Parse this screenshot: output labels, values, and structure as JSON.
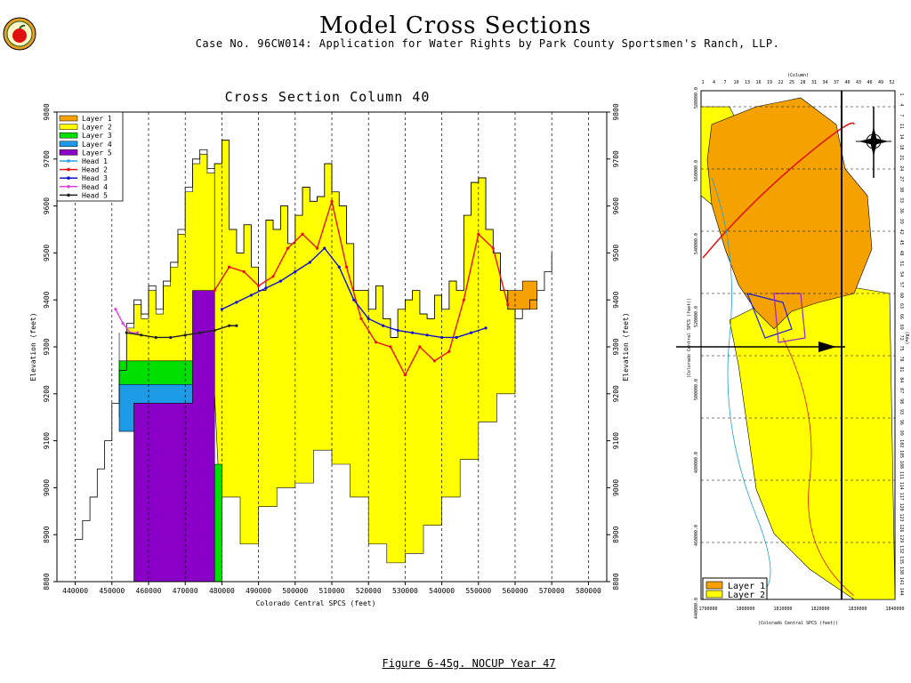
{
  "header": {
    "title": "Model Cross Sections",
    "subtitle": "Case No. 96CW014: Application for Water Rights by Park County Sportsmen's Ranch, LLP."
  },
  "caption": "Figure 6-45g.  NOCUP Year 47",
  "chart_data": {
    "type": "area",
    "title": "Cross Section Column 40",
    "xlabel": "Colorado Central SPCS (feet)",
    "ylabel": "Elevation (feet)",
    "ylabel_right": "Elevation (feet)",
    "xlim": [
      435000,
      585000
    ],
    "ylim": [
      8800,
      9800
    ],
    "xticks": [
      440000,
      450000,
      460000,
      470000,
      480000,
      490000,
      500000,
      510000,
      520000,
      530000,
      540000,
      550000,
      560000,
      570000,
      580000
    ],
    "yticks": [
      8800,
      8900,
      9000,
      9100,
      9200,
      9300,
      9400,
      9500,
      9600,
      9700,
      9800
    ],
    "grid": "vertical dashed",
    "legend_position": "top-left",
    "legend": [
      {
        "name": "Layer 1",
        "color": "#f5a100"
      },
      {
        "name": "Layer 2",
        "color": "#ffff00"
      },
      {
        "name": "Layer 3",
        "color": "#00e000"
      },
      {
        "name": "Layer 4",
        "color": "#1e9be6"
      },
      {
        "name": "Layer 5",
        "color": "#8a00c8"
      },
      {
        "name": "Head 1",
        "color": "#2aa0e8"
      },
      {
        "name": "Head 2",
        "color": "#e81010"
      },
      {
        "name": "Head 3",
        "color": "#1010d0"
      },
      {
        "name": "Head 4",
        "color": "#e040e0"
      },
      {
        "name": "Head 5",
        "color": "#202020"
      }
    ],
    "ground_surface": {
      "x": [
        440000,
        442000,
        444000,
        446000,
        448000,
        450000,
        452000,
        454000,
        456000,
        458000,
        460000,
        462000,
        464000,
        466000,
        468000,
        470000,
        472000,
        474000,
        476000,
        478000,
        480000,
        482000,
        484000,
        486000,
        488000,
        490000,
        492000,
        494000,
        496000,
        498000,
        500000,
        502000,
        504000,
        506000,
        508000,
        510000,
        512000,
        514000,
        516000,
        518000,
        520000,
        522000,
        524000,
        526000,
        528000,
        530000,
        532000,
        534000,
        536000,
        538000,
        540000,
        542000,
        544000,
        546000,
        548000,
        550000,
        552000,
        554000,
        556000,
        558000,
        560000,
        562000,
        564000,
        566000,
        568000,
        570000
      ],
      "y": [
        8890,
        8930,
        8980,
        9040,
        9100,
        9180,
        9250,
        9350,
        9400,
        9370,
        9430,
        9380,
        9440,
        9480,
        9550,
        9640,
        9700,
        9720,
        9680,
        9690,
        9740,
        9550,
        9500,
        9560,
        9470,
        9420,
        9570,
        9550,
        9600,
        9520,
        9580,
        9640,
        9610,
        9620,
        9690,
        9630,
        9600,
        9520,
        9420,
        9420,
        9380,
        9430,
        9360,
        9320,
        9380,
        9400,
        9420,
        9370,
        9360,
        9410,
        9380,
        9440,
        9420,
        9580,
        9650,
        9660,
        9550,
        9500,
        9420,
        9380,
        9360,
        9380,
        9400,
        9420,
        9460,
        9500
      ]
    },
    "layer_bottoms": {
      "layer2_bottom_x": [
        480000,
        485000,
        490000,
        495000,
        500000,
        505000,
        510000,
        515000,
        520000,
        525000,
        530000,
        535000,
        540000,
        545000,
        550000,
        555000,
        560000
      ],
      "layer2_bottom_y": [
        8880,
        8980,
        8880,
        8960,
        9000,
        9010,
        9080,
        9050,
        8980,
        8880,
        8840,
        8860,
        8920,
        8980,
        9060,
        9140,
        9200
      ]
    },
    "series": [
      {
        "name": "Head 2",
        "x": [
          478000,
          482000,
          486000,
          490000,
          494000,
          498000,
          502000,
          506000,
          510000,
          514000,
          518000,
          522000,
          526000,
          530000,
          534000,
          538000,
          542000,
          546000,
          550000,
          554000,
          558000
        ],
        "y": [
          9420,
          9470,
          9460,
          9430,
          9450,
          9510,
          9540,
          9510,
          9610,
          9470,
          9360,
          9310,
          9300,
          9240,
          9300,
          9270,
          9290,
          9400,
          9540,
          9510,
          9390
        ]
      },
      {
        "name": "Head 3",
        "x": [
          480000,
          484000,
          488000,
          492000,
          496000,
          500000,
          504000,
          508000,
          512000,
          516000,
          520000,
          524000,
          528000,
          532000,
          536000,
          540000,
          544000,
          548000,
          552000
        ],
        "y": [
          9380,
          9395,
          9410,
          9425,
          9440,
          9460,
          9480,
          9510,
          9470,
          9400,
          9360,
          9345,
          9335,
          9330,
          9325,
          9320,
          9320,
          9330,
          9340
        ]
      },
      {
        "name": "Head 4",
        "x": [
          451000,
          453000,
          455000,
          457000
        ],
        "y": [
          9380,
          9350,
          9330,
          9330
        ]
      },
      {
        "name": "Head 5",
        "x": [
          454000,
          458000,
          462000,
          466000,
          470000,
          474000,
          478000,
          482000,
          484000
        ],
        "y": [
          9330,
          9325,
          9320,
          9320,
          9325,
          9330,
          9335,
          9345,
          9345
        ]
      }
    ]
  },
  "map": {
    "legend": [
      {
        "name": "Layer 1",
        "color": "#f5a100"
      },
      {
        "name": "Layer 2",
        "color": "#ffff00"
      }
    ],
    "top_axis_label": "(Column)",
    "top_ticks": [
      "1",
      "4",
      "7",
      "10",
      "13",
      "16",
      "19",
      "22",
      "25",
      "28",
      "31",
      "34",
      "37",
      "40",
      "43",
      "46",
      "49",
      "52"
    ],
    "right_axis_label": "(Row)",
    "right_ticks": [
      "1",
      "4",
      "7",
      "11",
      "14",
      "18",
      "21",
      "24",
      "27",
      "30",
      "33",
      "36",
      "39",
      "42",
      "45",
      "48",
      "51",
      "54",
      "57",
      "60",
      "63",
      "66",
      "69",
      "72",
      "75",
      "78",
      "81",
      "84",
      "87",
      "90",
      "93",
      "96",
      "99",
      "102",
      "105",
      "108",
      "111",
      "114",
      "117",
      "120",
      "123",
      "126",
      "129",
      "132",
      "135",
      "138",
      "141",
      "144"
    ],
    "bottom_label": "(Colorado Central SPCS (feet))",
    "bottom_ticks": [
      "1790000",
      "1800000",
      "1810000",
      "1820000",
      "1830000",
      "1840000"
    ],
    "left_label": "(Colorado Central SPCS (feet))",
    "left_ticks": [
      "580000.0",
      "560000.0",
      "540000.0",
      "520000.0",
      "500000.0",
      "480000.0",
      "460000.0",
      "440000.0"
    ]
  }
}
